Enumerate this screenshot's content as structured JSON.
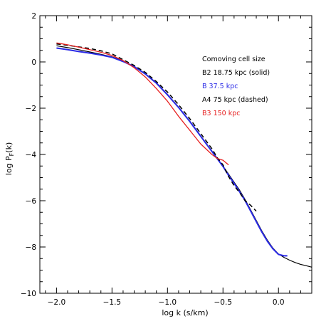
{
  "chart_data": {
    "type": "line",
    "xlabel": "log k (s/km)",
    "ylabel": "log P",
    "ylabel_sub": "F",
    "ylabel_tail": "(k)",
    "xlim": [
      -2.15,
      0.3
    ],
    "ylim": [
      -10,
      2
    ],
    "xticks": [
      -2.0,
      -1.5,
      -1.0,
      -0.5,
      0.0
    ],
    "xtick_labels": [
      "−2.0",
      "−1.5",
      "−1.0",
      "−0.5",
      "0.0"
    ],
    "yticks": [
      -10,
      -8,
      -6,
      -4,
      -2,
      0,
      2
    ],
    "ytick_labels": [
      "−10",
      "−8",
      "−6",
      "−4",
      "−2",
      "0",
      "2"
    ],
    "legend_title": "Comoving cell size",
    "legend_position": "top-right",
    "series": [
      {
        "name": "B2 18.75 kpc (solid)",
        "color": "#000000",
        "dash": "solid",
        "width": 1.2,
        "x": [
          -2.0,
          -1.9,
          -1.8,
          -1.7,
          -1.6,
          -1.5,
          -1.4,
          -1.3,
          -1.2,
          -1.1,
          -1.0,
          -0.9,
          -0.8,
          -0.7,
          -0.6,
          -0.5,
          -0.45,
          -0.4,
          -0.35,
          -0.3,
          -0.25,
          -0.2,
          -0.15,
          -0.1,
          -0.05,
          0.0,
          0.05,
          0.1,
          0.15,
          0.2,
          0.25,
          0.3
        ],
        "y": [
          0.7,
          0.62,
          0.53,
          0.43,
          0.33,
          0.22,
          0.04,
          -0.2,
          -0.5,
          -0.9,
          -1.4,
          -1.95,
          -2.55,
          -3.2,
          -3.85,
          -4.5,
          -4.85,
          -5.2,
          -5.55,
          -5.95,
          -6.4,
          -6.85,
          -7.3,
          -7.7,
          -8.05,
          -8.3,
          -8.45,
          -8.57,
          -8.67,
          -8.75,
          -8.81,
          -8.87
        ]
      },
      {
        "name": "B  37.5 kpc",
        "color": "#2a2ae6",
        "dash": "solid",
        "width": 2.0,
        "x": [
          -2.0,
          -1.9,
          -1.8,
          -1.7,
          -1.6,
          -1.5,
          -1.4,
          -1.3,
          -1.2,
          -1.1,
          -1.0,
          -0.9,
          -0.8,
          -0.7,
          -0.6,
          -0.5,
          -0.45,
          -0.4,
          -0.35,
          -0.3,
          -0.25,
          -0.2,
          -0.15,
          -0.1,
          -0.05,
          0.0,
          0.05,
          0.08
        ],
        "y": [
          0.6,
          0.53,
          0.45,
          0.38,
          0.3,
          0.2,
          0.02,
          -0.2,
          -0.52,
          -0.92,
          -1.42,
          -1.97,
          -2.57,
          -3.22,
          -3.87,
          -4.52,
          -4.9,
          -5.25,
          -5.62,
          -6.0,
          -6.45,
          -6.9,
          -7.35,
          -7.75,
          -8.08,
          -8.32,
          -8.38,
          -8.38
        ]
      },
      {
        "name": "A4 75 kpc (dashed)",
        "color": "#000000",
        "dash": "6,4",
        "width": 1.5,
        "x": [
          -2.0,
          -1.9,
          -1.8,
          -1.7,
          -1.6,
          -1.5,
          -1.4,
          -1.3,
          -1.2,
          -1.1,
          -1.0,
          -0.9,
          -0.8,
          -0.7,
          -0.6,
          -0.55,
          -0.5,
          -0.45,
          -0.4,
          -0.35,
          -0.3,
          -0.25,
          -0.2
        ],
        "y": [
          0.78,
          0.72,
          0.65,
          0.58,
          0.48,
          0.35,
          0.1,
          -0.15,
          -0.45,
          -0.85,
          -1.3,
          -1.85,
          -2.45,
          -3.1,
          -3.75,
          -4.15,
          -4.45,
          -4.95,
          -5.35,
          -5.65,
          -6.0,
          -6.2,
          -6.45
        ]
      },
      {
        "name": "B3 150 kpc",
        "color": "#e61e1e",
        "dash": "solid",
        "width": 1.3,
        "x": [
          -2.0,
          -1.9,
          -1.8,
          -1.7,
          -1.6,
          -1.5,
          -1.4,
          -1.3,
          -1.2,
          -1.1,
          -1.0,
          -0.9,
          -0.8,
          -0.7,
          -0.6,
          -0.55,
          -0.5,
          -0.45
        ],
        "y": [
          0.82,
          0.74,
          0.64,
          0.53,
          0.42,
          0.28,
          0.06,
          -0.25,
          -0.65,
          -1.15,
          -1.7,
          -2.35,
          -2.95,
          -3.55,
          -4.0,
          -4.18,
          -4.25,
          -4.45
        ]
      }
    ]
  }
}
